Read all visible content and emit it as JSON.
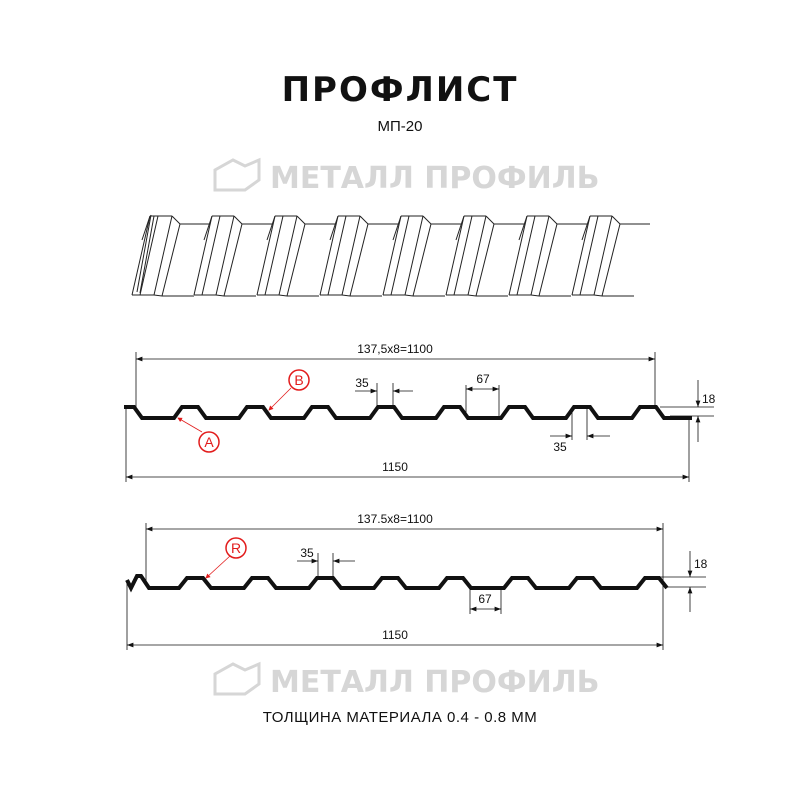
{
  "title": "ПРОФЛИСТ",
  "subtitle": "МП-20",
  "footer": "ТОЛЩИНА МАТЕРИАЛА 0.4 - 0.8 ММ",
  "watermark": "МЕТАЛЛ ПРОФИЛЬ",
  "colors": {
    "profile": "#111111",
    "callout": "#e21c1c",
    "watermark": "#d6d6d6"
  },
  "profile_a": {
    "pitch_dim": "137,5x8=1100",
    "width_dim": "1150",
    "top_dim": "35",
    "bottom_top_dim": "67",
    "bottom_dim": "35",
    "height_dim": "18",
    "callouts": [
      "A",
      "B"
    ]
  },
  "profile_b": {
    "pitch_dim": "137.5x8=1100",
    "width_dim": "1150",
    "top_dim": "35",
    "bottom_dim": "67",
    "height_dim": "18",
    "callouts": [
      "R"
    ]
  }
}
